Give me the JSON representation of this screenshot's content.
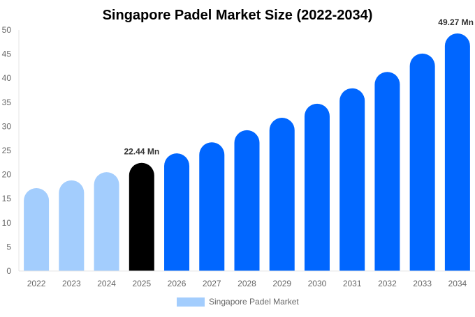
{
  "chart_data": {
    "type": "bar",
    "title": "Singapore Padel Market Size (2022-2034)",
    "categories": [
      "2022",
      "2023",
      "2024",
      "2025",
      "2026",
      "2027",
      "2028",
      "2029",
      "2030",
      "2031",
      "2032",
      "2033",
      "2034"
    ],
    "series": [
      {
        "name": "Singapore Padel Market",
        "values": [
          17.2,
          18.8,
          20.5,
          22.44,
          24.4,
          26.7,
          29.2,
          31.8,
          34.7,
          37.9,
          41.3,
          45.1,
          49.27
        ]
      }
    ],
    "colors": {
      "historical": "#a3cdfd",
      "current": "#000000",
      "forecast": "#0066ff"
    },
    "bar_roles": [
      "historical",
      "historical",
      "historical",
      "current",
      "forecast",
      "forecast",
      "forecast",
      "forecast",
      "forecast",
      "forecast",
      "forecast",
      "forecast",
      "forecast"
    ],
    "data_labels": [
      {
        "index": 3,
        "text": "22.44 Mn"
      },
      {
        "index": 12,
        "text": "49.27 Mn"
      }
    ],
    "ylim": [
      0,
      50
    ],
    "yticks": [
      "0",
      "5",
      "10",
      "15",
      "20",
      "25",
      "30",
      "35",
      "40",
      "45",
      "50"
    ],
    "xlabel": "",
    "ylabel": "",
    "grid": false,
    "legend": {
      "position": "bottom",
      "label": "Singapore Padel Market",
      "color": "#a3cdfd"
    }
  }
}
